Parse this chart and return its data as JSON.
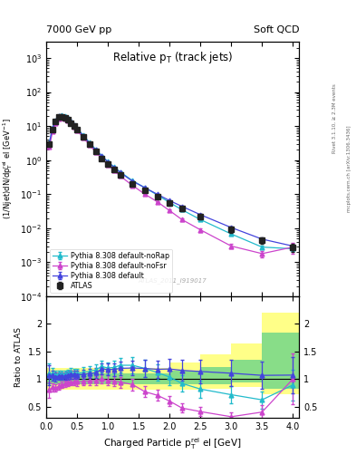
{
  "title_left": "7000 GeV pp",
  "title_right": "Soft QCD",
  "plot_title": "Relative p_{T} (track jets)",
  "xlabel": "Charged Particle p_{T}^{rel} [GeV]",
  "ylabel_main": "(1/Njet)dN/dp_{T}^{rel} [GeV^{-1}]",
  "ylabel_ratio": "Ratio to ATLAS",
  "watermark": "ATLAS_2011_I919017",
  "right_label1": "Rivet 3.1.10, ≥ 2.3M events",
  "right_label2": "mcplots.cern.ch [arXiv:1306.3436]",
  "atlas_x": [
    0.05,
    0.1,
    0.15,
    0.2,
    0.25,
    0.3,
    0.35,
    0.4,
    0.45,
    0.5,
    0.6,
    0.7,
    0.8,
    0.9,
    1.0,
    1.1,
    1.2,
    1.4,
    1.6,
    1.8,
    2.0,
    2.2,
    2.5,
    3.0,
    3.5,
    4.0
  ],
  "atlas_y": [
    3.0,
    8.0,
    14.0,
    18.5,
    19.0,
    18.0,
    15.5,
    12.5,
    10.0,
    7.8,
    4.8,
    2.9,
    1.8,
    1.1,
    0.75,
    0.52,
    0.36,
    0.2,
    0.13,
    0.085,
    0.055,
    0.038,
    0.022,
    0.0095,
    0.0045,
    0.0028
  ],
  "atlas_yerr": [
    0.5,
    0.7,
    1.0,
    1.2,
    1.2,
    1.1,
    1.0,
    0.8,
    0.7,
    0.55,
    0.35,
    0.22,
    0.14,
    0.09,
    0.065,
    0.048,
    0.035,
    0.022,
    0.016,
    0.011,
    0.008,
    0.006,
    0.004,
    0.002,
    0.001,
    0.0008
  ],
  "py_default_x": [
    0.05,
    0.1,
    0.15,
    0.2,
    0.25,
    0.3,
    0.35,
    0.4,
    0.45,
    0.5,
    0.6,
    0.7,
    0.8,
    0.9,
    1.0,
    1.1,
    1.2,
    1.4,
    1.6,
    1.8,
    2.0,
    2.2,
    2.5,
    3.0,
    3.5,
    4.0
  ],
  "py_default_y": [
    3.2,
    8.5,
    14.5,
    19.5,
    20.0,
    19.0,
    16.5,
    13.5,
    10.8,
    8.4,
    5.2,
    3.2,
    2.0,
    1.3,
    0.88,
    0.61,
    0.43,
    0.24,
    0.155,
    0.1,
    0.065,
    0.044,
    0.025,
    0.0105,
    0.0048,
    0.003
  ],
  "py_default_yerr": [
    0.1,
    0.2,
    0.25,
    0.3,
    0.3,
    0.3,
    0.25,
    0.2,
    0.18,
    0.15,
    0.1,
    0.07,
    0.05,
    0.03,
    0.022,
    0.016,
    0.012,
    0.007,
    0.005,
    0.003,
    0.002,
    0.0015,
    0.001,
    0.0005,
    0.0003,
    0.0003
  ],
  "py_nofsr_x": [
    0.05,
    0.1,
    0.15,
    0.2,
    0.25,
    0.3,
    0.35,
    0.4,
    0.45,
    0.5,
    0.6,
    0.7,
    0.8,
    0.9,
    1.0,
    1.1,
    1.2,
    1.4,
    1.6,
    1.8,
    2.0,
    2.2,
    2.5,
    3.0,
    3.5,
    4.0
  ],
  "py_nofsr_y": [
    2.4,
    6.8,
    11.8,
    16.0,
    17.0,
    16.5,
    14.5,
    11.8,
    9.5,
    7.4,
    4.6,
    2.8,
    1.75,
    1.1,
    0.73,
    0.5,
    0.34,
    0.18,
    0.1,
    0.06,
    0.033,
    0.018,
    0.009,
    0.003,
    0.0018,
    0.0028
  ],
  "py_nofsr_yerr": [
    0.1,
    0.2,
    0.25,
    0.3,
    0.3,
    0.3,
    0.25,
    0.2,
    0.18,
    0.15,
    0.1,
    0.07,
    0.05,
    0.03,
    0.022,
    0.016,
    0.012,
    0.007,
    0.005,
    0.003,
    0.002,
    0.0015,
    0.001,
    0.0005,
    0.0004,
    0.001
  ],
  "py_norap_x": [
    0.05,
    0.1,
    0.15,
    0.2,
    0.25,
    0.3,
    0.35,
    0.4,
    0.45,
    0.5,
    0.6,
    0.7,
    0.8,
    0.9,
    1.0,
    1.1,
    1.2,
    1.4,
    1.6,
    1.8,
    2.0,
    2.2,
    2.5,
    3.0,
    3.5,
    4.0
  ],
  "py_norap_y": [
    3.3,
    8.8,
    15.0,
    20.0,
    20.5,
    19.5,
    17.0,
    14.0,
    11.0,
    8.6,
    5.4,
    3.3,
    2.1,
    1.35,
    0.9,
    0.63,
    0.45,
    0.25,
    0.155,
    0.095,
    0.057,
    0.035,
    0.018,
    0.0068,
    0.0028,
    0.0025
  ],
  "py_norap_yerr": [
    0.1,
    0.2,
    0.25,
    0.3,
    0.3,
    0.3,
    0.25,
    0.2,
    0.18,
    0.15,
    0.1,
    0.07,
    0.05,
    0.03,
    0.022,
    0.016,
    0.012,
    0.007,
    0.005,
    0.003,
    0.002,
    0.0015,
    0.001,
    0.0005,
    0.0003,
    0.0003
  ],
  "color_atlas": "#222222",
  "color_default": "#4444dd",
  "color_nofsr": "#cc44cc",
  "color_norap": "#22bbcc",
  "ylim_main": [
    0.0001,
    3000.0
  ],
  "xlim": [
    0.0,
    4.1
  ],
  "ylim_ratio": [
    0.3,
    2.5
  ],
  "ratio_yticks": [
    0.5,
    1.0,
    1.5,
    2.0
  ],
  "band_edges": [
    0.0,
    0.5,
    1.0,
    1.5,
    2.0,
    2.5,
    3.0,
    3.5,
    4.1
  ],
  "yellow_lo_vals": [
    0.8,
    0.8,
    0.8,
    0.8,
    0.8,
    0.82,
    0.85,
    0.72,
    0.72
  ],
  "yellow_hi_vals": [
    1.2,
    1.2,
    1.2,
    1.2,
    1.3,
    1.45,
    1.65,
    2.2,
    2.5
  ],
  "green_lo_vals": [
    0.9,
    0.9,
    0.9,
    0.9,
    0.9,
    0.91,
    0.93,
    0.82,
    0.82
  ],
  "green_hi_vals": [
    1.1,
    1.1,
    1.1,
    1.1,
    1.15,
    1.22,
    1.35,
    1.85,
    2.0
  ]
}
